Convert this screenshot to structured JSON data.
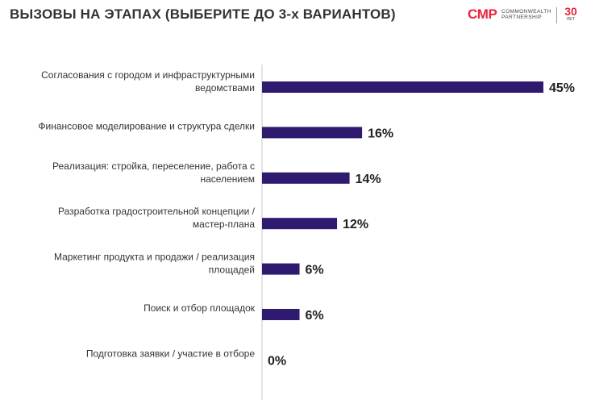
{
  "title": "ВЫЗОВЫ НА ЭТАПАХ (ВЫБЕРИТЕ ДО 3-х ВАРИАНТОВ)",
  "logo": {
    "mark": "CMP",
    "brand": "COMMONWEALTH\nPARTNERSHIP",
    "years": "30",
    "years_word": "ЛЕТ"
  },
  "chart_data": {
    "type": "bar",
    "orientation": "horizontal",
    "categories": [
      [
        "Согласования с городом и инфраструктурными",
        "ведомствами"
      ],
      [
        "Финансовое моделирование и структура сделки"
      ],
      [
        "Реализация: стройка, переселение, работа с",
        "населением"
      ],
      [
        "Разработка градостроительной концепции /",
        "мастер-плана"
      ],
      [
        "Маркетинг продукта и продажи / реализация",
        "площадей"
      ],
      [
        "Поиск и отбор площадок"
      ],
      [
        "Подготовка заявки / участие в отборе"
      ]
    ],
    "values": [
      45,
      16,
      14,
      12,
      6,
      6,
      0
    ],
    "value_labels": [
      "45%",
      "16%",
      "14%",
      "12%",
      "6%",
      "6%",
      "0%"
    ],
    "xlim": [
      0,
      45
    ],
    "bar_color": "#2e1a6e",
    "axis_color": "#c8c8c8"
  }
}
